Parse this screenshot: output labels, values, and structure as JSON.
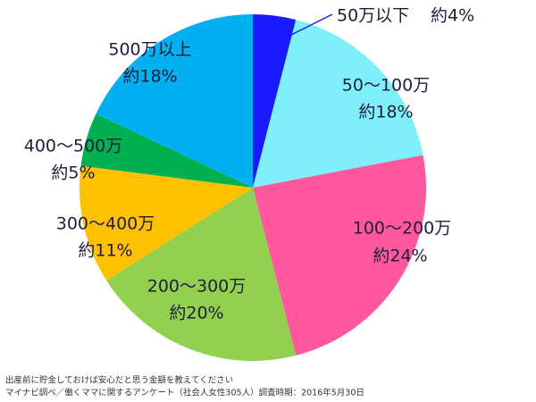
{
  "chart_data": {
    "type": "pie",
    "categories": [
      "50万以下",
      "50～100万",
      "100～200万",
      "200～300万",
      "300～400万",
      "400～500万",
      "500万以上"
    ],
    "values": [
      4,
      18,
      24,
      20,
      11,
      5,
      18
    ],
    "value_labels": [
      "約4%",
      "約18%",
      "約24%",
      "約20%",
      "約11%",
      "約5%",
      "約18%"
    ],
    "colors": [
      "#1a1aff",
      "#7ff0fa",
      "#ff589f",
      "#92d050",
      "#ffc000",
      "#00b050",
      "#00b0f0"
    ],
    "notes": [
      "出産前に貯金しておけば安心だと思う金額を教えてください",
      "マイナビ調べ／働くママに関するアンケート（社会人女性305人）調査時期：2016年5月30日"
    ]
  }
}
